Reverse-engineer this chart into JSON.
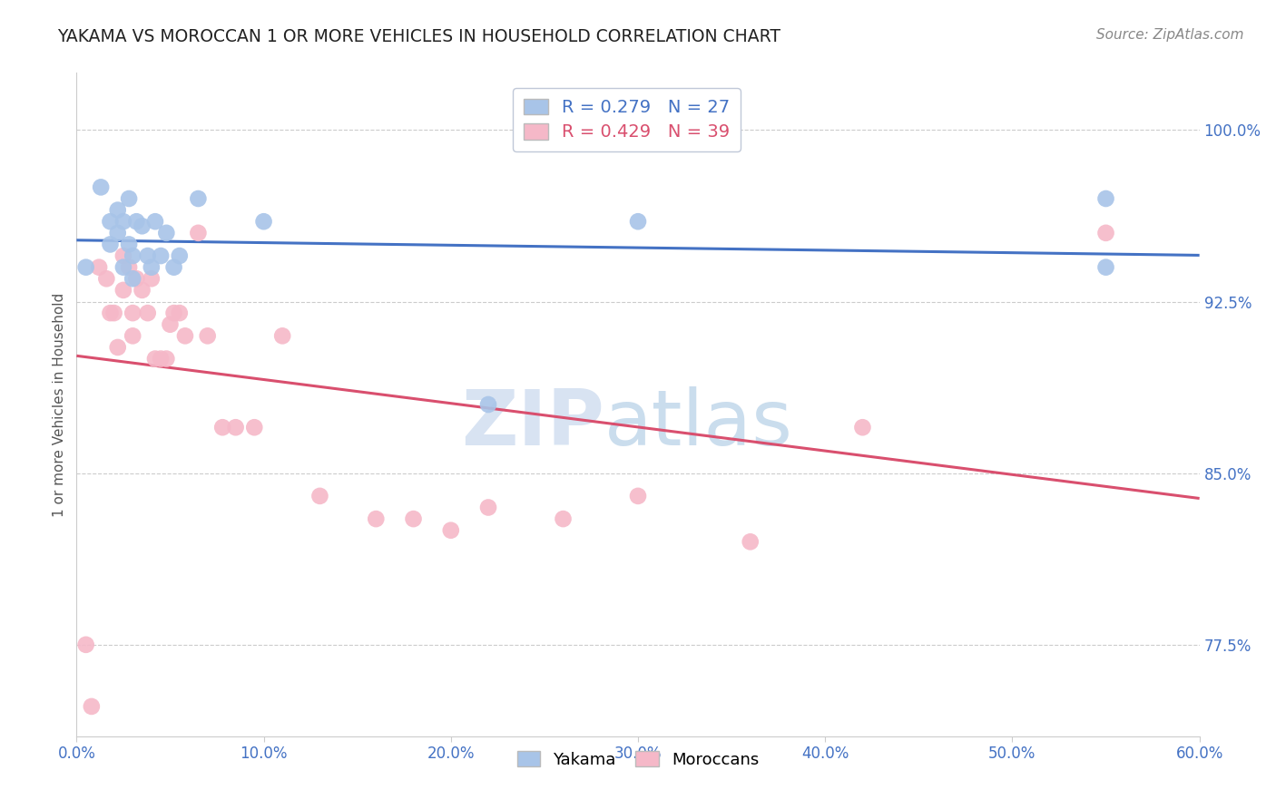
{
  "title": "YAKAMA VS MOROCCAN 1 OR MORE VEHICLES IN HOUSEHOLD CORRELATION CHART",
  "source": "Source: ZipAtlas.com",
  "ylabel": "1 or more Vehicles in Household",
  "xlim": [
    0.0,
    0.6
  ],
  "ylim": [
    0.735,
    1.025
  ],
  "xtick_labels": [
    "0.0%",
    "",
    "",
    "",
    "",
    "",
    "",
    "",
    "",
    "",
    "10.0%",
    "",
    "",
    "",
    "",
    "",
    "",
    "",
    "",
    "",
    "20.0%",
    "",
    "",
    "",
    "",
    "",
    "",
    "",
    "",
    "",
    "30.0%",
    "",
    "",
    "",
    "",
    "",
    "",
    "",
    "",
    "",
    "40.0%",
    "",
    "",
    "",
    "",
    "",
    "",
    "",
    "",
    "",
    "50.0%",
    "",
    "",
    "",
    "",
    "",
    "",
    "",
    "",
    "",
    "60.0%"
  ],
  "xtick_values": [
    0.0,
    0.01,
    0.02,
    0.03,
    0.04,
    0.05,
    0.06,
    0.07,
    0.08,
    0.09,
    0.1,
    0.11,
    0.12,
    0.13,
    0.14,
    0.15,
    0.16,
    0.17,
    0.18,
    0.19,
    0.2,
    0.21,
    0.22,
    0.23,
    0.24,
    0.25,
    0.26,
    0.27,
    0.28,
    0.29,
    0.3,
    0.31,
    0.32,
    0.33,
    0.34,
    0.35,
    0.36,
    0.37,
    0.38,
    0.39,
    0.4,
    0.41,
    0.42,
    0.43,
    0.44,
    0.45,
    0.46,
    0.47,
    0.48,
    0.49,
    0.5,
    0.51,
    0.52,
    0.53,
    0.54,
    0.55,
    0.56,
    0.57,
    0.58,
    0.59,
    0.6
  ],
  "xtick_major_labels": [
    "0.0%",
    "10.0%",
    "20.0%",
    "30.0%",
    "40.0%",
    "50.0%",
    "60.0%"
  ],
  "xtick_major_values": [
    0.0,
    0.1,
    0.2,
    0.3,
    0.4,
    0.5,
    0.6
  ],
  "ytick_labels": [
    "77.5%",
    "85.0%",
    "92.5%",
    "100.0%"
  ],
  "ytick_values": [
    0.775,
    0.85,
    0.925,
    1.0
  ],
  "r_yakama": 0.279,
  "n_yakama": 27,
  "r_moroccan": 0.429,
  "n_moroccan": 39,
  "yakama_color": "#a8c4e8",
  "moroccan_color": "#f5b8c8",
  "trend_yakama_color": "#4472c4",
  "trend_moroccan_color": "#d94f6e",
  "yakama_x": [
    0.005,
    0.013,
    0.018,
    0.018,
    0.022,
    0.022,
    0.025,
    0.025,
    0.028,
    0.028,
    0.03,
    0.03,
    0.032,
    0.035,
    0.038,
    0.04,
    0.042,
    0.045,
    0.048,
    0.052,
    0.055,
    0.065,
    0.1,
    0.22,
    0.3,
    0.55,
    0.55
  ],
  "yakama_y": [
    0.94,
    0.975,
    0.96,
    0.95,
    0.965,
    0.955,
    0.96,
    0.94,
    0.97,
    0.95,
    0.945,
    0.935,
    0.96,
    0.958,
    0.945,
    0.94,
    0.96,
    0.945,
    0.955,
    0.94,
    0.945,
    0.97,
    0.96,
    0.88,
    0.96,
    0.97,
    0.94
  ],
  "moroccan_x": [
    0.005,
    0.008,
    0.012,
    0.016,
    0.018,
    0.02,
    0.022,
    0.025,
    0.025,
    0.028,
    0.03,
    0.03,
    0.032,
    0.035,
    0.038,
    0.04,
    0.042,
    0.045,
    0.048,
    0.05,
    0.052,
    0.055,
    0.058,
    0.065,
    0.07,
    0.078,
    0.085,
    0.095,
    0.11,
    0.13,
    0.16,
    0.18,
    0.2,
    0.22,
    0.26,
    0.3,
    0.36,
    0.42,
    0.55
  ],
  "moroccan_y": [
    0.775,
    0.748,
    0.94,
    0.935,
    0.92,
    0.92,
    0.905,
    0.945,
    0.93,
    0.94,
    0.92,
    0.91,
    0.935,
    0.93,
    0.92,
    0.935,
    0.9,
    0.9,
    0.9,
    0.915,
    0.92,
    0.92,
    0.91,
    0.955,
    0.91,
    0.87,
    0.87,
    0.87,
    0.91,
    0.84,
    0.83,
    0.83,
    0.825,
    0.835,
    0.83,
    0.84,
    0.82,
    0.87,
    0.955
  ],
  "watermark_zip": "ZIP",
  "watermark_atlas": "atlas",
  "background_color": "#ffffff",
  "grid_color": "#cccccc",
  "title_color": "#222222",
  "axis_label_color": "#555555",
  "tick_color": "#4472c4",
  "source_color": "#888888",
  "legend_box_color": "#f0f4ff",
  "legend_border_color": "#c0c8e0"
}
